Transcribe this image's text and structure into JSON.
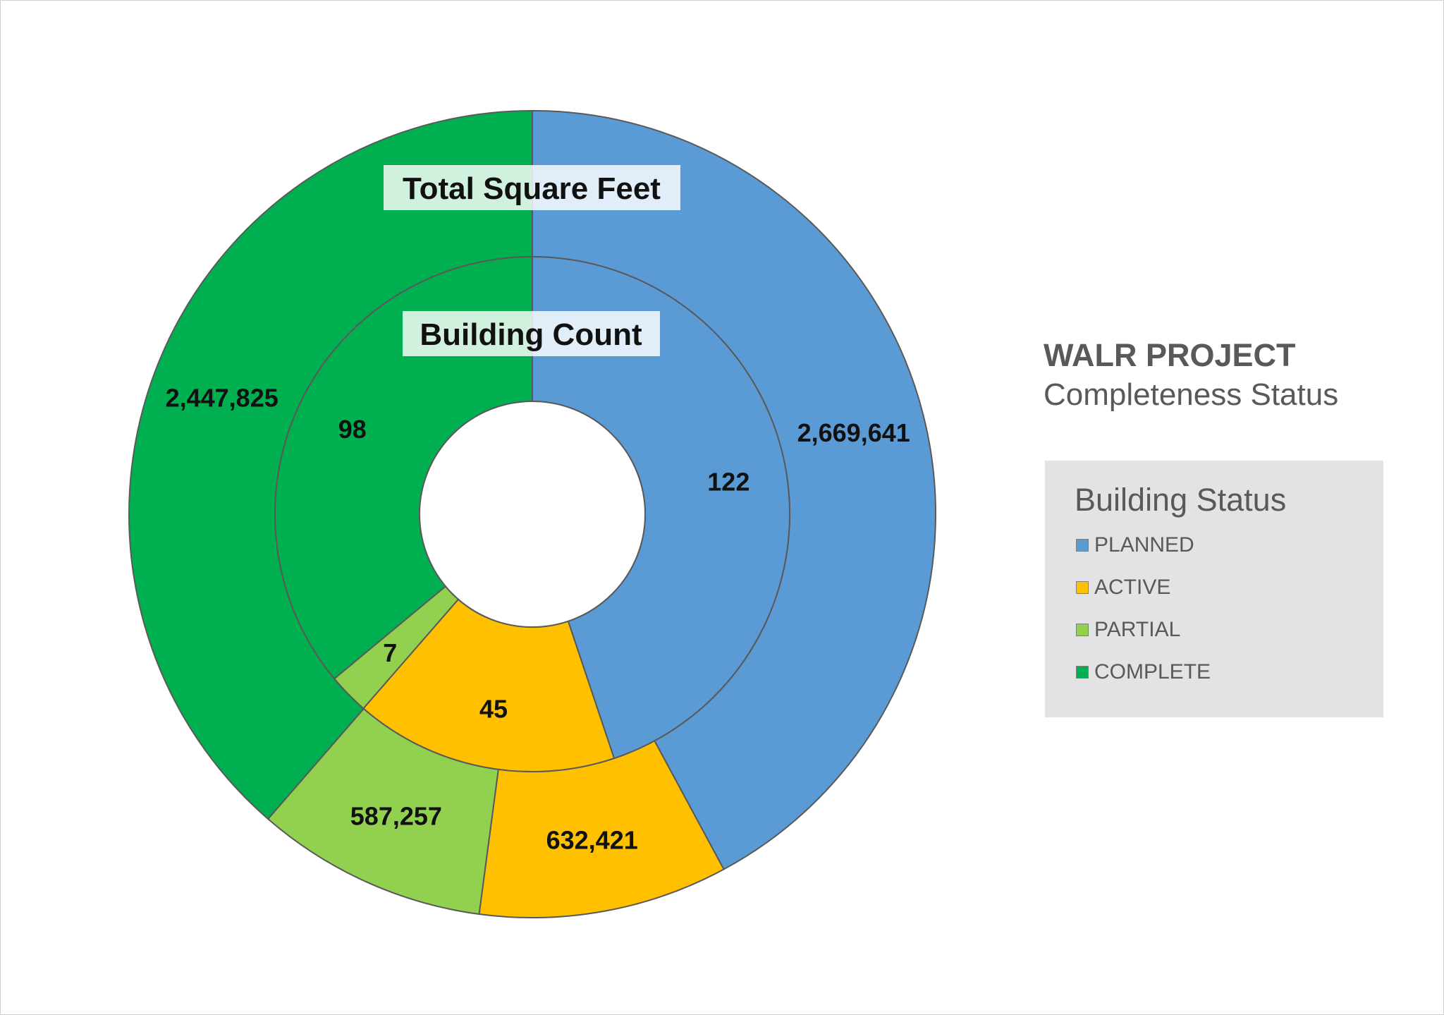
{
  "header": {
    "title": "WALR PROJECT",
    "subtitle": "Completeness Status"
  },
  "legend": {
    "title": "Building Status",
    "items": [
      {
        "label": "PLANNED",
        "color": "#5b9bd5"
      },
      {
        "label": "ACTIVE",
        "color": "#ffc000"
      },
      {
        "label": "PARTIAL",
        "color": "#92d050"
      },
      {
        "label": "COMPLETE",
        "color": "#00b050"
      }
    ]
  },
  "chart_data": {
    "type": "donut",
    "title": "WALR PROJECT",
    "subtitle": "Completeness Status",
    "legend_title": "Building Status",
    "legend_position": "right",
    "categories": [
      "PLANNED",
      "ACTIVE",
      "PARTIAL",
      "COMPLETE"
    ],
    "colors": [
      "#5b9bd5",
      "#ffc000",
      "#92d050",
      "#00b050"
    ],
    "series": [
      {
        "name": "Total Square Feet",
        "ring": "outer",
        "values": [
          2669641,
          632421,
          587257,
          2447825
        ],
        "labels": [
          "2,669,641",
          "632,421",
          "587,257",
          "2,447,825"
        ]
      },
      {
        "name": "Building Count",
        "ring": "inner",
        "values": [
          122,
          45,
          7,
          98
        ],
        "labels": [
          "122",
          "45",
          "7",
          "98"
        ]
      }
    ]
  }
}
